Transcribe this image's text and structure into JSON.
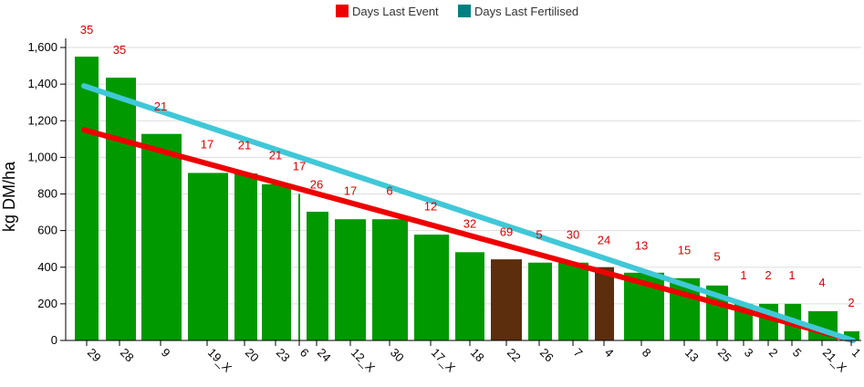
{
  "chart_data": {
    "type": "bar",
    "title": "",
    "ylabel": "kg DM/ha",
    "xlabel": "",
    "ylim": [
      0,
      1650
    ],
    "y_ticks": [
      0,
      200,
      400,
      600,
      800,
      1000,
      1200,
      1400,
      1600
    ],
    "y_tick_labels": [
      "0",
      "200",
      "400",
      "600",
      "800",
      "1,000",
      "1,200",
      "1,400",
      "1,600"
    ],
    "grid": true,
    "legend_position": "top-center",
    "legend": [
      {
        "name": "Days Last Event",
        "color": "#ee0000"
      },
      {
        "name": "Days Last Fertilised",
        "color": "#008080"
      }
    ],
    "categories": [
      "29",
      "28",
      "9",
      "19_X",
      "20",
      "23",
      "6",
      "24",
      "12_X",
      "30",
      "17_X",
      "18",
      "22",
      "26",
      "7",
      "4",
      "8",
      "13",
      "25",
      "3",
      "2",
      "5",
      "21_X",
      "1"
    ],
    "values": [
      1550,
      1435,
      1128,
      915,
      912,
      853,
      800,
      703,
      662,
      662,
      578,
      482,
      443,
      425,
      425,
      400,
      370,
      340,
      300,
      200,
      200,
      200,
      160,
      50
    ],
    "bar_colors": [
      "#009900",
      "#009900",
      "#009900",
      "#009900",
      "#009900",
      "#009900",
      "#009900",
      "#009900",
      "#009900",
      "#009900",
      "#009900",
      "#009900",
      "#5c2e0e",
      "#009900",
      "#009900",
      "#5c2e0e",
      "#009900",
      "#009900",
      "#009900",
      "#009900",
      "#009900",
      "#009900",
      "#009900",
      "#009900"
    ],
    "data_labels": [
      "35",
      "35",
      "21",
      "17",
      "21",
      "21",
      "17",
      "26",
      "17",
      "6",
      "12",
      "32",
      "69",
      "5",
      "30",
      "24",
      "13",
      "15",
      "5",
      "1",
      "2",
      "1",
      "4",
      "2"
    ],
    "data_label_values": [
      1700,
      1590,
      1280,
      1075,
      1070,
      1015,
      955,
      855,
      820,
      820,
      735,
      640,
      595,
      580,
      580,
      550,
      520,
      495,
      460,
      360,
      360,
      360,
      320,
      210
    ],
    "trend_lines": [
      {
        "name": "Days Last Event",
        "color": "#ee0000",
        "y_start": 1150,
        "y_end": 0
      },
      {
        "name": "Days Last Fertilised",
        "color": "#40c8d8",
        "y_start": 1390,
        "y_end": 0
      }
    ]
  }
}
